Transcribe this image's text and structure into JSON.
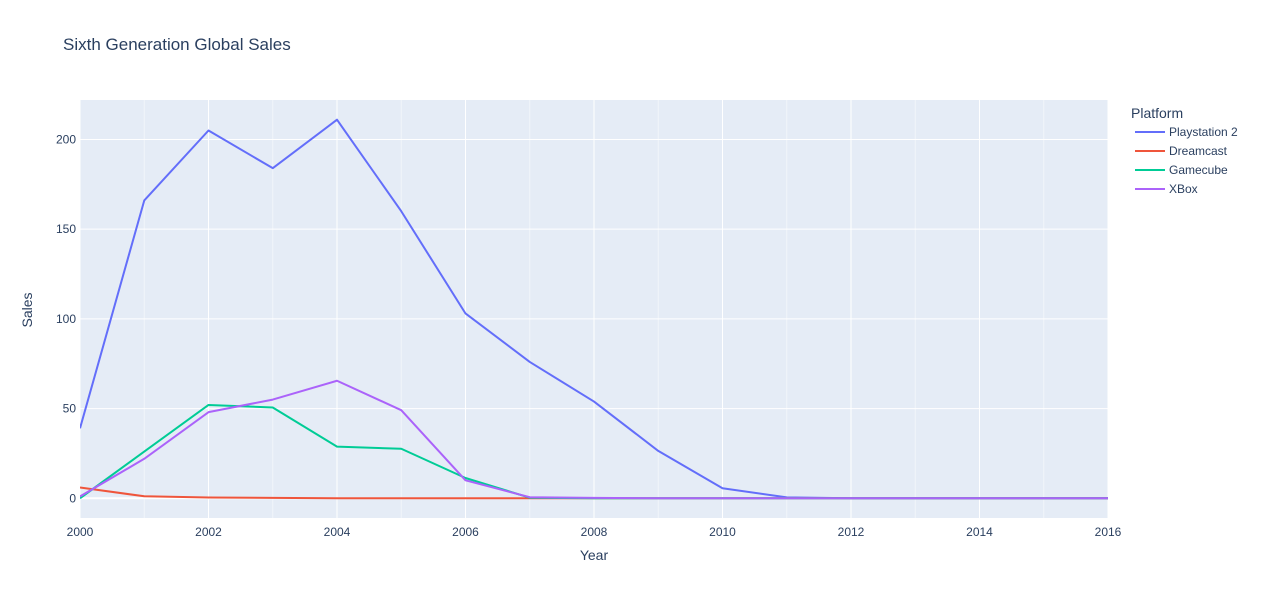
{
  "chart_data": {
    "type": "line",
    "title": "Sixth Generation Global Sales",
    "xlabel": "Year",
    "ylabel": "Sales",
    "xlim": [
      2000,
      2016
    ],
    "ylim": [
      -11,
      222
    ],
    "x_ticks": [
      2000,
      2002,
      2004,
      2006,
      2008,
      2010,
      2012,
      2014,
      2016
    ],
    "y_ticks": [
      0,
      50,
      100,
      150,
      200
    ],
    "grid": true,
    "legend": {
      "title": "Platform",
      "placement": "right"
    },
    "series": [
      {
        "name": "Playstation 2",
        "color": "#636efa",
        "x": [
          2000,
          2001,
          2002,
          2003,
          2004,
          2005,
          2006,
          2007,
          2008,
          2009,
          2010,
          2011,
          2012,
          2013,
          2014,
          2015,
          2016
        ],
        "values": [
          39,
          166,
          205,
          184,
          211,
          160,
          103,
          76,
          53.9,
          26.4,
          5.6,
          0.5,
          0,
          0,
          0,
          0,
          0
        ]
      },
      {
        "name": "Dreamcast",
        "color": "#ef553b",
        "x": [
          2000,
          2001,
          2002,
          2003,
          2004,
          2005,
          2006,
          2007,
          2008,
          2009,
          2010,
          2011,
          2012,
          2013,
          2014,
          2015,
          2016
        ],
        "values": [
          6,
          1.1,
          0.4,
          0.2,
          0,
          0,
          0,
          0,
          0,
          0,
          0,
          0,
          0,
          0,
          0,
          0,
          0
        ]
      },
      {
        "name": "Gamecube",
        "color": "#00cc96",
        "x": [
          2000,
          2001,
          2002,
          2003,
          2004,
          2005,
          2006,
          2007,
          2008,
          2009,
          2010,
          2011,
          2012,
          2013,
          2014,
          2015,
          2016
        ],
        "values": [
          0,
          26,
          52,
          50.6,
          28.8,
          27.6,
          11.3,
          0.3,
          0,
          0,
          0,
          0,
          0,
          0,
          0,
          0,
          0
        ]
      },
      {
        "name": "XBox",
        "color": "#ab63fa",
        "x": [
          2000,
          2001,
          2002,
          2003,
          2004,
          2005,
          2006,
          2007,
          2008,
          2009,
          2010,
          2011,
          2012,
          2013,
          2014,
          2015,
          2016
        ],
        "values": [
          1,
          22,
          48,
          55,
          65.5,
          49.1,
          10,
          0.6,
          0.2,
          0,
          0,
          0,
          0,
          0,
          0,
          0,
          0
        ]
      }
    ]
  }
}
